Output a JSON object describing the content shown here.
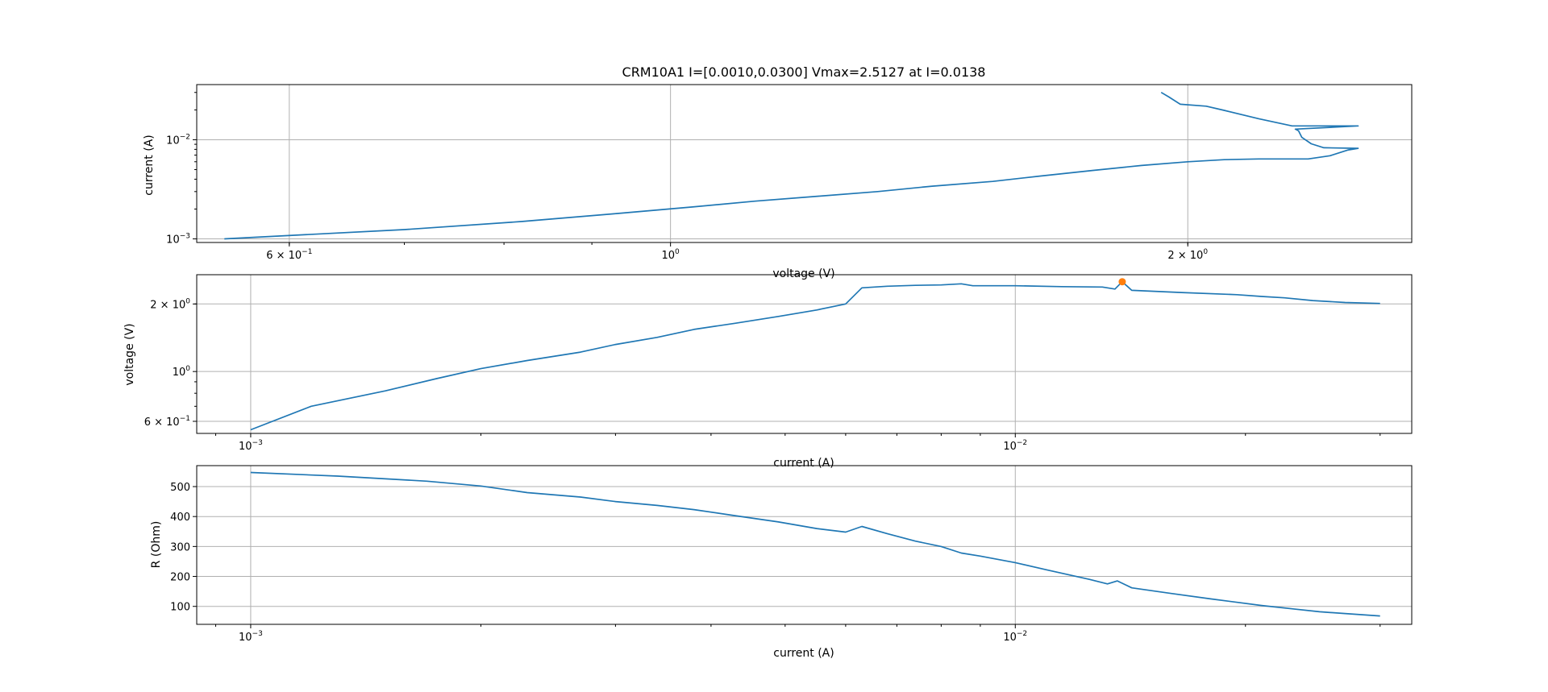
{
  "figure": {
    "title": "CRM10A1 I=[0.0010,0.0300] Vmax=2.5127 at I=0.0138"
  },
  "colors": {
    "series": "#1f77b4",
    "marker": "#ff7f0e",
    "grid": "#b0b0b0"
  },
  "chart_data": [
    {
      "type": "line",
      "name": "current-vs-voltage",
      "xlabel": "voltage (V)",
      "ylabel": "current (A)",
      "xscale": "log",
      "yscale": "log",
      "xlim": [
        0.53,
        2.7
      ],
      "ylim": [
        0.00092,
        0.036
      ],
      "grid": true,
      "xticks": [
        {
          "value": 0.6,
          "mantissa": "6 × 10",
          "exp": "−1"
        },
        {
          "value": 1.0,
          "mantissa": "10",
          "exp": "0"
        },
        {
          "value": 2.0,
          "mantissa": "2 × 10",
          "exp": "0"
        }
      ],
      "yticks": [
        {
          "value": 0.001,
          "mantissa": "10",
          "exp": "−3"
        },
        {
          "value": 0.01,
          "mantissa": "10",
          "exp": "−2"
        }
      ],
      "series": [
        {
          "x": [
            0.55,
            0.7,
            0.82,
            0.93,
            1.03,
            1.12,
            1.22,
            1.32,
            1.42,
            1.54,
            1.64,
            1.76,
            1.88,
            2.0,
            2.1,
            2.2,
            2.3,
            2.35,
            2.42,
            2.48,
            2.5127,
            2.4,
            2.36,
            2.33,
            2.32,
            2.31,
            2.5127,
            2.3,
            2.2,
            2.1,
            2.05,
            1.98,
            1.95,
            1.93
          ],
          "y": [
            0.001,
            0.00124,
            0.0015,
            0.0018,
            0.0021,
            0.0024,
            0.0027,
            0.003,
            0.0034,
            0.0038,
            0.0043,
            0.0049,
            0.0055,
            0.006,
            0.0063,
            0.0064,
            0.0064,
            0.0064,
            0.0069,
            0.0079,
            0.0082,
            0.0083,
            0.0091,
            0.0106,
            0.0123,
            0.0128,
            0.0138,
            0.0138,
            0.0163,
            0.0198,
            0.0218,
            0.0228,
            0.027,
            0.03
          ]
        }
      ]
    },
    {
      "type": "line",
      "name": "voltage-vs-current",
      "xlabel": "current (A)",
      "ylabel": "voltage (V)",
      "xscale": "log",
      "yscale": "log",
      "xlim": [
        0.00085,
        0.033
      ],
      "ylim": [
        0.53,
        2.7
      ],
      "grid": true,
      "xticks": [
        {
          "value": 0.001,
          "mantissa": "10",
          "exp": "−3"
        },
        {
          "value": 0.01,
          "mantissa": "10",
          "exp": "−2"
        }
      ],
      "yticks": [
        {
          "value": 0.6,
          "mantissa": "6 × 10",
          "exp": "−1"
        },
        {
          "value": 1.0,
          "mantissa": "10",
          "exp": "0"
        },
        {
          "value": 2.0,
          "mantissa": "2 × 10",
          "exp": "0"
        }
      ],
      "series": [
        {
          "x": [
            0.001,
            0.0012,
            0.0015,
            0.00175,
            0.002,
            0.0023,
            0.0027,
            0.003,
            0.0034,
            0.0038,
            0.0043,
            0.0049,
            0.0055,
            0.006,
            0.0063,
            0.0068,
            0.0074,
            0.008,
            0.0085,
            0.0088,
            0.01,
            0.0115,
            0.013,
            0.0135,
            0.0138,
            0.0142,
            0.0165,
            0.0195,
            0.021,
            0.0225,
            0.0245,
            0.027,
            0.03
          ],
          "y": [
            0.55,
            0.7,
            0.82,
            0.93,
            1.03,
            1.12,
            1.22,
            1.32,
            1.42,
            1.54,
            1.64,
            1.76,
            1.88,
            2.0,
            2.36,
            2.4,
            2.42,
            2.43,
            2.46,
            2.41,
            2.41,
            2.39,
            2.38,
            2.33,
            2.5127,
            2.3,
            2.25,
            2.2,
            2.16,
            2.13,
            2.07,
            2.03,
            2.01
          ]
        }
      ],
      "marker": {
        "x": 0.0138,
        "y": 2.5127
      }
    },
    {
      "type": "line",
      "name": "resistance-vs-current",
      "xlabel": "current (A)",
      "ylabel": "R (Ohm)",
      "xscale": "log",
      "yscale": "linear",
      "xlim": [
        0.00085,
        0.033
      ],
      "ylim": [
        40,
        570
      ],
      "grid": true,
      "xticks": [
        {
          "value": 0.001,
          "mantissa": "10",
          "exp": "−3"
        },
        {
          "value": 0.01,
          "mantissa": "10",
          "exp": "−2"
        }
      ],
      "yticks": [
        {
          "value": 100,
          "label": "100"
        },
        {
          "value": 200,
          "label": "200"
        },
        {
          "value": 300,
          "label": "300"
        },
        {
          "value": 400,
          "label": "400"
        },
        {
          "value": 500,
          "label": "500"
        }
      ],
      "series": [
        {
          "x": [
            0.001,
            0.0013,
            0.0017,
            0.002,
            0.0023,
            0.0027,
            0.003,
            0.0034,
            0.0038,
            0.0043,
            0.0049,
            0.0055,
            0.006,
            0.0063,
            0.0068,
            0.0074,
            0.008,
            0.0085,
            0.009,
            0.01,
            0.011,
            0.0125,
            0.0132,
            0.0136,
            0.0142,
            0.016,
            0.018,
            0.021,
            0.023,
            0.025,
            0.027,
            0.03
          ],
          "y": [
            547,
            535,
            518,
            502,
            480,
            465,
            450,
            437,
            423,
            403,
            382,
            360,
            348,
            367,
            343,
            318,
            300,
            278,
            268,
            246,
            222,
            190,
            175,
            185,
            162,
            143,
            125,
            103,
            92,
            82,
            76,
            68
          ]
        }
      ]
    }
  ]
}
